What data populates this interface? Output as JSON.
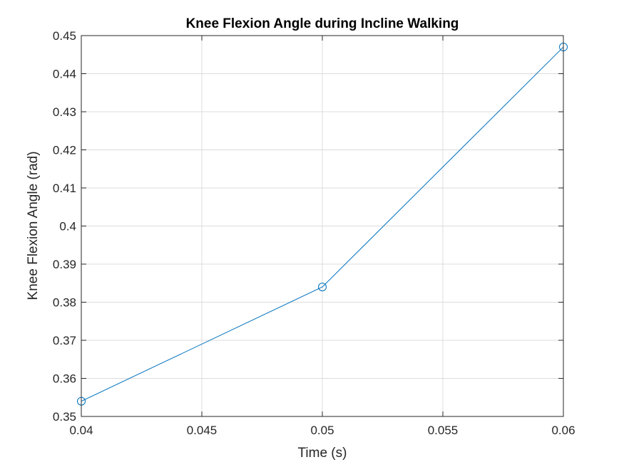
{
  "chart_data": {
    "type": "line",
    "title": "Knee Flexion Angle during Incline Walking",
    "xlabel": "Time (s)",
    "ylabel": "Knee Flexion Angle (rad)",
    "xlim": [
      0.04,
      0.06
    ],
    "ylim": [
      0.35,
      0.45
    ],
    "xticks": [
      0.04,
      0.045,
      0.05,
      0.055,
      0.06
    ],
    "xtick_labels": [
      "0.04",
      "0.045",
      "0.05",
      "0.055",
      "0.06"
    ],
    "yticks": [
      0.35,
      0.36,
      0.37,
      0.38,
      0.39,
      0.4,
      0.41,
      0.42,
      0.43,
      0.44,
      0.45
    ],
    "ytick_labels": [
      "0.35",
      "0.36",
      "0.37",
      "0.38",
      "0.39",
      "0.4",
      "0.41",
      "0.42",
      "0.43",
      "0.44",
      "0.45"
    ],
    "grid": true,
    "series": [
      {
        "x": [
          0.04,
          0.05,
          0.06
        ],
        "y": [
          0.354,
          0.384,
          0.447
        ],
        "color": "#0072BD",
        "marker": "circle"
      }
    ]
  }
}
